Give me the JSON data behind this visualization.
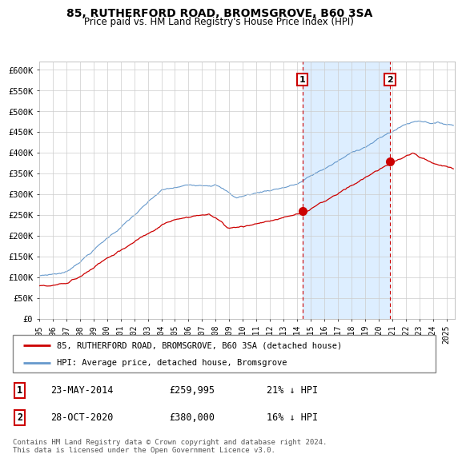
{
  "title": "85, RUTHERFORD ROAD, BROMSGROVE, B60 3SA",
  "subtitle": "Price paid vs. HM Land Registry's House Price Index (HPI)",
  "ylabel_ticks": [
    "£0",
    "£50K",
    "£100K",
    "£150K",
    "£200K",
    "£250K",
    "£300K",
    "£350K",
    "£400K",
    "£450K",
    "£500K",
    "£550K",
    "£600K"
  ],
  "ylim": [
    0,
    620000
  ],
  "yticks": [
    0,
    50000,
    100000,
    150000,
    200000,
    250000,
    300000,
    350000,
    400000,
    450000,
    500000,
    550000,
    600000
  ],
  "legend_line1": "85, RUTHERFORD ROAD, BROMSGROVE, B60 3SA (detached house)",
  "legend_line2": "HPI: Average price, detached house, Bromsgrove",
  "annotation1_date": "23-MAY-2014",
  "annotation1_price": "£259,995",
  "annotation1_pct": "21% ↓ HPI",
  "annotation2_date": "28-OCT-2020",
  "annotation2_price": "£380,000",
  "annotation2_pct": "16% ↓ HPI",
  "footer": "Contains HM Land Registry data © Crown copyright and database right 2024.\nThis data is licensed under the Open Government Licence v3.0.",
  "red_color": "#cc0000",
  "blue_color": "#6699cc",
  "shade_color": "#ddeeff",
  "sale1_x": 2014.38,
  "sale1_y": 259995,
  "sale2_x": 2020.83,
  "sale2_y": 380000,
  "vline1_x": 2014.38,
  "vline2_x": 2020.83,
  "xlim_start": 1995.0,
  "xlim_end": 2025.6
}
